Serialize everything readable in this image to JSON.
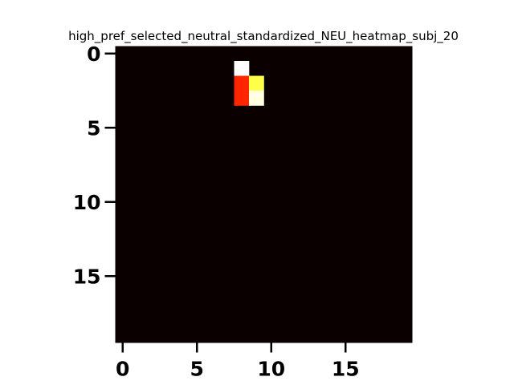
{
  "chart_data": {
    "type": "heatmap",
    "title": "high_pref_selected_neutral_standardized_NEU_heatmap_subj_20",
    "xlabel": "",
    "ylabel": "",
    "grid": false,
    "colormap": "hot",
    "background_color": "#0b0000",
    "n_rows": 20,
    "n_cols": 20,
    "xlim": [
      -0.5,
      19.5
    ],
    "ylim": [
      19.5,
      -0.5
    ],
    "xticks": [
      0,
      5,
      10,
      15
    ],
    "yticks": [
      0,
      5,
      10,
      15
    ],
    "xtick_labels": [
      "0",
      "5",
      "10",
      "15"
    ],
    "ytick_labels": [
      "0",
      "5",
      "10",
      "15"
    ],
    "cells": [
      {
        "row": 1,
        "col": 8,
        "value": 1.0
      },
      {
        "row": 2,
        "col": 8,
        "value": 0.42
      },
      {
        "row": 3,
        "col": 8,
        "value": 0.42
      },
      {
        "row": 2,
        "col": 9,
        "value": 0.82
      },
      {
        "row": 3,
        "col": 9,
        "value": 0.97
      }
    ]
  }
}
